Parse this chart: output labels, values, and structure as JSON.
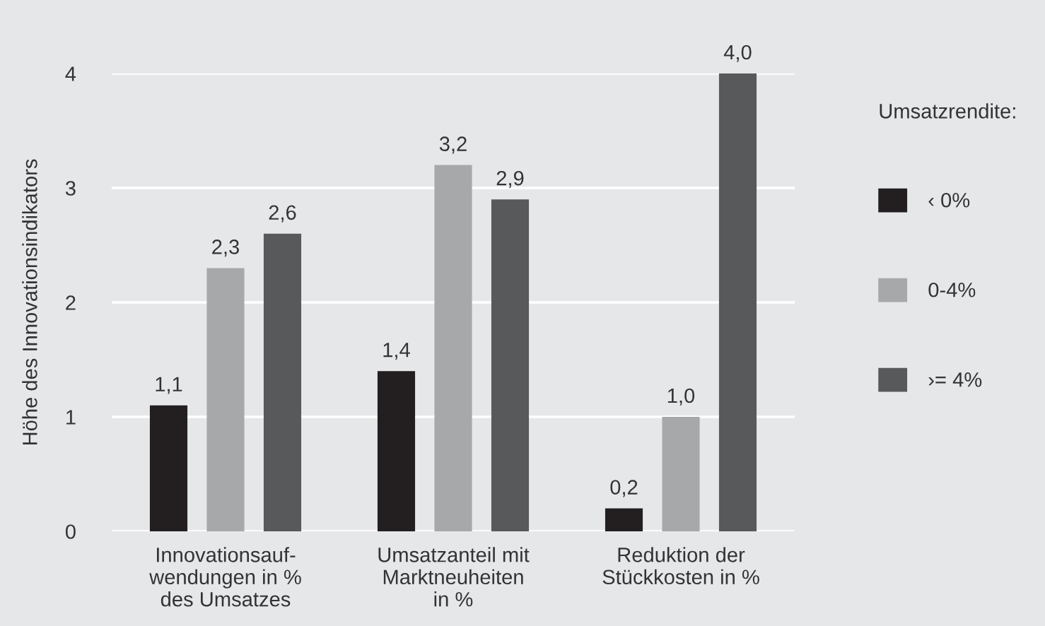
{
  "chart_data": {
    "type": "bar",
    "ylabel": "Höhe des Innovationsindikators",
    "legend_title": "Umsatzrendite:",
    "categories": [
      "Innovationsauf-\nwendungen in %\ndes Umsatzes",
      "Umsatzanteil mit\nMarktneuheiten\nin %",
      "Reduktion der\nStückkosten in %"
    ],
    "series": [
      {
        "name": "‹ 0%",
        "color": "#231f20",
        "values": [
          1.1,
          1.4,
          0.2
        ],
        "value_labels": [
          "1,1",
          "1,4",
          "0,2"
        ]
      },
      {
        "name": "0-4%",
        "color": "#a7a8aa",
        "values": [
          2.3,
          3.2,
          1.0
        ],
        "value_labels": [
          "2,3",
          "3,2",
          "1,0"
        ]
      },
      {
        "name": "›= 4%",
        "color": "#58595b",
        "values": [
          2.6,
          2.9,
          4.0
        ],
        "value_labels": [
          "2,6",
          "2,9",
          "4,0"
        ]
      }
    ],
    "ylim": [
      0,
      4
    ],
    "yticks": [
      0,
      1,
      2,
      3,
      4
    ],
    "grid": "y",
    "legend": "right"
  }
}
